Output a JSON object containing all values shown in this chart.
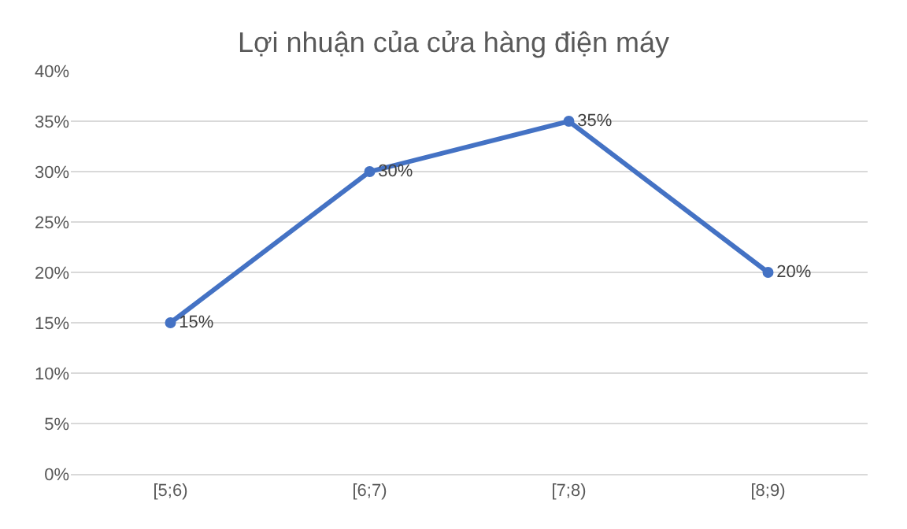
{
  "chart_data": {
    "type": "line",
    "title": "Lợi nhuận của cửa hàng điện máy",
    "categories": [
      "[5;6)",
      "[6;7)",
      "[7;8)",
      "[8;9)"
    ],
    "series": [
      {
        "color": "#4472c4",
        "values": [
          15,
          30,
          35,
          20
        ],
        "value_labels": [
          "15%",
          "30%",
          "35%",
          "20%"
        ]
      }
    ],
    "ylim": [
      0,
      40
    ],
    "yticks": [
      {
        "value": 0,
        "label": "0%"
      },
      {
        "value": 5,
        "label": "5%"
      },
      {
        "value": 10,
        "label": "10%"
      },
      {
        "value": 15,
        "label": "15%"
      },
      {
        "value": 20,
        "label": "20%"
      },
      {
        "value": 25,
        "label": "25%"
      },
      {
        "value": 30,
        "label": "30%"
      },
      {
        "value": 35,
        "label": "35%"
      },
      {
        "value": 40,
        "label": "40%"
      }
    ],
    "grid": "y",
    "marker": "circle",
    "line_style": "solid"
  }
}
